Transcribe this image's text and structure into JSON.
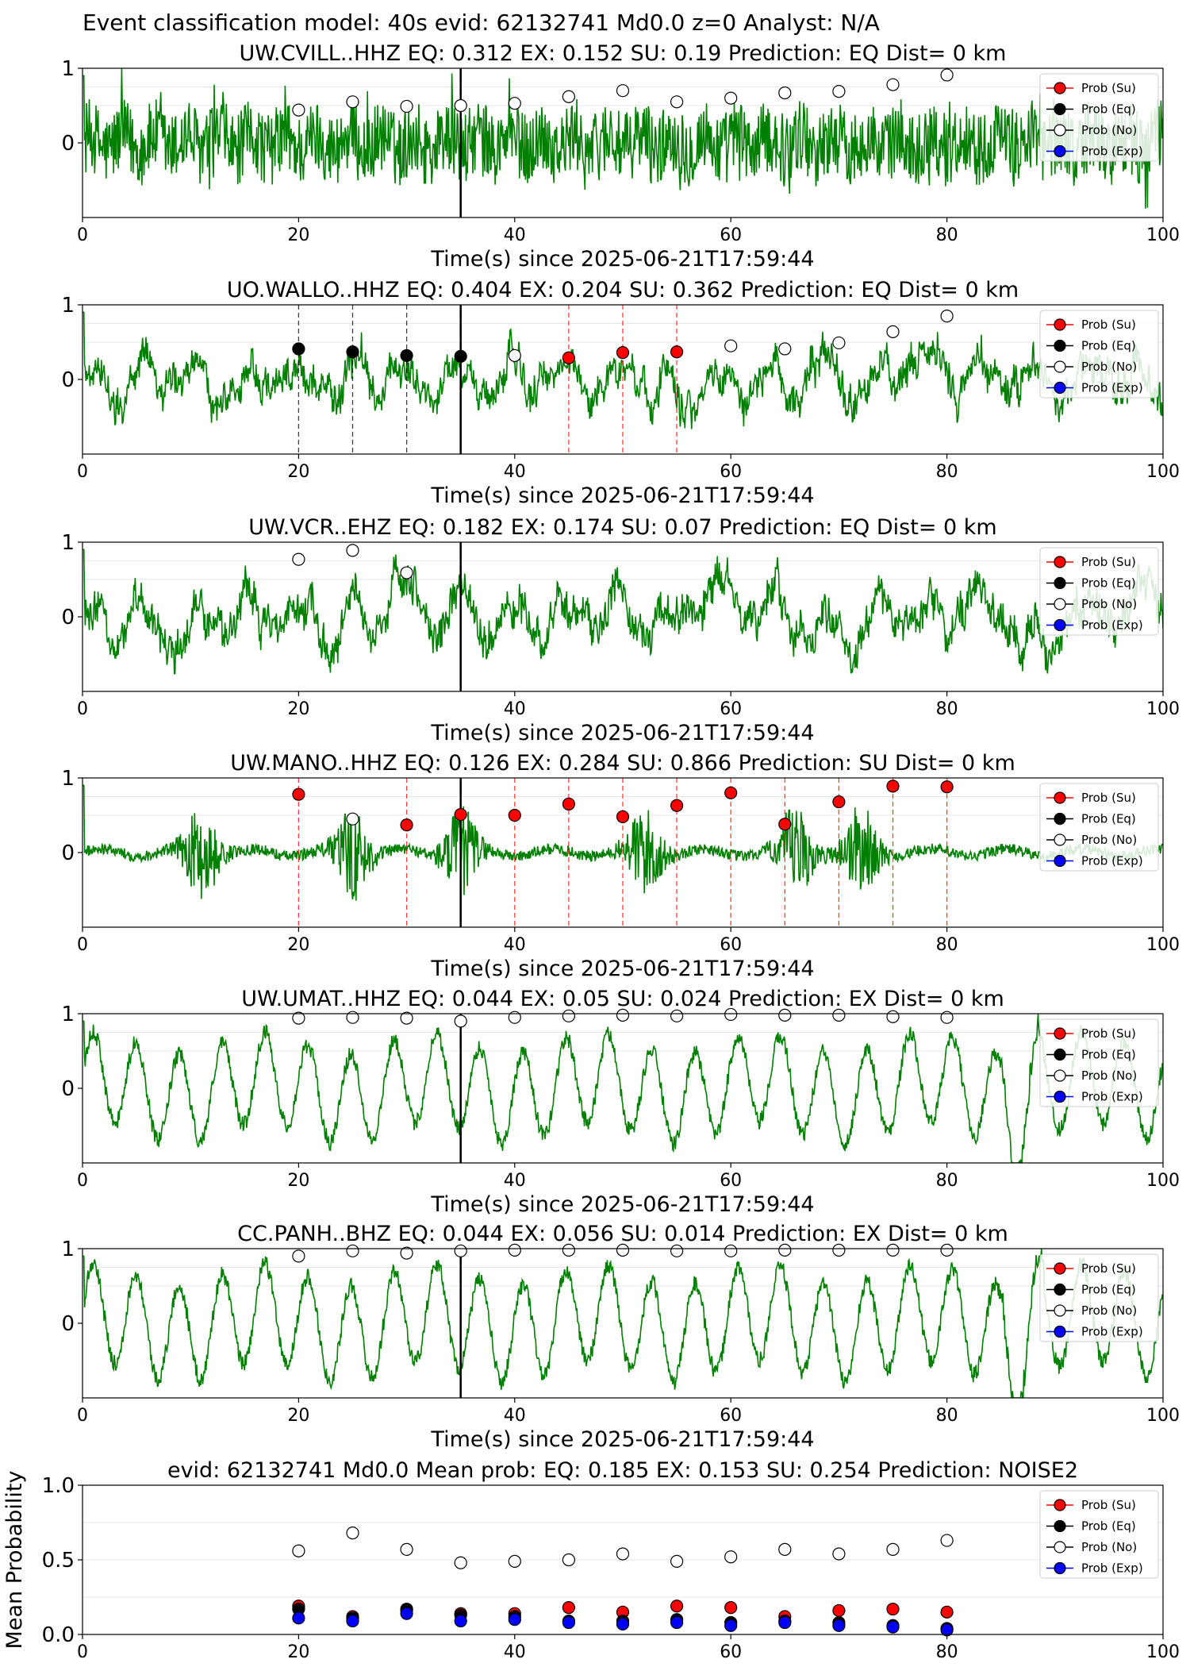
{
  "suptitle": "Event classification model: 40s evid: 62132741 Md0.0 z=0 Analyst: N/A",
  "legend": [
    {
      "label": "Prob (Su)",
      "color": "#ff0000",
      "filled": true
    },
    {
      "label": "Prob (Eq)",
      "color": "#000000",
      "filled": true
    },
    {
      "label": "Prob (No)",
      "color": "#ffffff",
      "filled": false
    },
    {
      "label": "Prob (Exp)",
      "color": "#0000ff",
      "filled": true
    }
  ],
  "colors": {
    "waveform": "#008000",
    "su": "#ff0000",
    "eq": "#000000",
    "no": "#ffffff",
    "exp": "#0000ff",
    "pick_line": "#000000"
  },
  "chart_data": [
    {
      "type": "line",
      "title": "UW.CVILL..HHZ   EQ: 0.312  EX: 0.152  SU: 0.19   Prediction: EQ    Dist= 0 km",
      "xlabel": "Time(s) since 2025-06-21T17:59:44",
      "xlim": [
        0,
        100
      ],
      "ylim": [
        -1,
        1
      ],
      "xticks": [
        "0",
        "20",
        "40",
        "60",
        "80",
        "100"
      ],
      "yticks": [
        "0",
        "1"
      ],
      "pick_time": 35,
      "waveform": {
        "style": "noisy",
        "amplitude": 0.55
      },
      "windows_x": [
        20,
        25,
        30,
        35,
        40,
        45,
        50,
        55,
        60,
        65,
        70,
        75,
        80
      ],
      "series": [
        {
          "name": "Prob (No)",
          "values": [
            0.44,
            0.55,
            0.49,
            0.5,
            0.53,
            0.62,
            0.7,
            0.55,
            0.6,
            0.67,
            0.69,
            0.78,
            0.91
          ]
        }
      ],
      "vlines": []
    },
    {
      "type": "line",
      "title": "UO.WALLO..HHZ   EQ: 0.404  EX: 0.204  SU: 0.362   Prediction: EQ    Dist= 0 km",
      "xlabel": "Time(s) since 2025-06-21T17:59:44",
      "xlim": [
        0,
        100
      ],
      "ylim": [
        -1,
        1
      ],
      "xticks": [
        "0",
        "20",
        "40",
        "60",
        "80",
        "100"
      ],
      "yticks": [
        "0",
        "1"
      ],
      "pick_time": 35,
      "waveform": {
        "style": "wander",
        "amplitude": 0.45
      },
      "windows_x": [
        20,
        25,
        30,
        35,
        40,
        45,
        50,
        55,
        60,
        65,
        70,
        75,
        80
      ],
      "series": [
        {
          "name": "Prob (Eq)",
          "x": [
            20,
            25,
            30,
            35
          ],
          "values": [
            0.41,
            0.37,
            0.32,
            0.31
          ]
        },
        {
          "name": "Prob (No)",
          "x": [
            40,
            60,
            65,
            70,
            75,
            80
          ],
          "values": [
            0.32,
            0.45,
            0.41,
            0.49,
            0.64,
            0.85
          ]
        },
        {
          "name": "Prob (Su)",
          "x": [
            45,
            50,
            55
          ],
          "values": [
            0.29,
            0.36,
            0.37
          ]
        }
      ],
      "vlines": [
        {
          "x": 20,
          "color": "#000000"
        },
        {
          "x": 25,
          "color": "#000000"
        },
        {
          "x": 30,
          "color": "#000000"
        },
        {
          "x": 45,
          "color": "#ff0000"
        },
        {
          "x": 50,
          "color": "#ff0000"
        },
        {
          "x": 55,
          "color": "#ff0000"
        }
      ]
    },
    {
      "type": "line",
      "title": "UW.VCR..EHZ   EQ: 0.182  EX: 0.174  SU: 0.07   Prediction: EQ    Dist= 0 km",
      "xlabel": "Time(s) since 2025-06-21T17:59:44",
      "xlim": [
        0,
        100
      ],
      "ylim": [
        -1,
        1
      ],
      "xticks": [
        "0",
        "20",
        "40",
        "60",
        "80",
        "100"
      ],
      "yticks": [
        "0",
        "1"
      ],
      "pick_time": 35,
      "waveform": {
        "style": "wander",
        "amplitude": 0.5
      },
      "windows_x": [
        20,
        25,
        30
      ],
      "series": [
        {
          "name": "Prob (No)",
          "x": [
            20,
            25,
            30
          ],
          "values": [
            0.77,
            0.89,
            0.59
          ]
        }
      ],
      "vlines": []
    },
    {
      "type": "line",
      "title": "UW.MANO..HHZ   EQ: 0.126  EX: 0.284  SU: 0.866   Prediction: SU    Dist= 0 km",
      "xlabel": "Time(s) since 2025-06-21T17:59:44",
      "xlim": [
        0,
        100
      ],
      "ylim": [
        -1,
        1
      ],
      "xticks": [
        "0",
        "20",
        "40",
        "60",
        "80",
        "100"
      ],
      "yticks": [
        "0",
        "1"
      ],
      "pick_time": 35,
      "waveform": {
        "style": "bursts",
        "amplitude": 0.3
      },
      "windows_x": [
        20,
        25,
        30,
        35,
        40,
        45,
        50,
        55,
        60,
        65,
        70,
        75,
        80
      ],
      "series": [
        {
          "name": "Prob (Su)",
          "x": [
            20,
            30,
            35,
            40,
            45,
            50,
            55,
            60,
            65,
            70,
            75,
            80
          ],
          "values": [
            0.78,
            0.37,
            0.51,
            0.5,
            0.65,
            0.48,
            0.63,
            0.8,
            0.38,
            0.68,
            0.89,
            0.88
          ]
        },
        {
          "name": "Prob (No)",
          "x": [
            25
          ],
          "values": [
            0.45
          ]
        }
      ],
      "vlines": [
        {
          "x": 20,
          "color": "#ff0000"
        },
        {
          "x": 30,
          "color": "#ff0000"
        },
        {
          "x": 40,
          "color": "#ff0000"
        },
        {
          "x": 45,
          "color": "#ff0000"
        },
        {
          "x": 50,
          "color": "#ff0000"
        },
        {
          "x": 55,
          "color": "#ff0000"
        },
        {
          "x": 60,
          "color": "#ff0000"
        },
        {
          "x": 65,
          "color": "#ff0000"
        },
        {
          "x": 70,
          "color": "#ff0000"
        },
        {
          "x": 75,
          "color": "#ff0000"
        },
        {
          "x": 80,
          "color": "#ff0000"
        }
      ]
    },
    {
      "type": "line",
      "title": "UW.UMAT..HHZ   EQ: 0.044  EX: 0.05  SU: 0.024   Prediction: EX    Dist= 0 km",
      "xlabel": "Time(s) since 2025-06-21T17:59:44",
      "xlim": [
        0,
        100
      ],
      "ylim": [
        -1,
        1
      ],
      "xticks": [
        "0",
        "20",
        "40",
        "60",
        "80",
        "100"
      ],
      "yticks": [
        "0",
        "1"
      ],
      "pick_time": 35,
      "waveform": {
        "style": "oscillation",
        "amplitude": 0.6
      },
      "windows_x": [
        20,
        25,
        30,
        35,
        40,
        45,
        50,
        55,
        60,
        65,
        70,
        75,
        80
      ],
      "series": [
        {
          "name": "Prob (No)",
          "values": [
            0.94,
            0.95,
            0.94,
            0.9,
            0.95,
            0.97,
            0.98,
            0.97,
            0.99,
            0.98,
            0.98,
            0.96,
            0.95
          ]
        }
      ],
      "vlines": []
    },
    {
      "type": "line",
      "title": "CC.PANH..BHZ   EQ: 0.044  EX: 0.056  SU: 0.014   Prediction: EX    Dist= 0 km",
      "xlabel": "Time(s) since 2025-06-21T17:59:44",
      "xlim": [
        0,
        100
      ],
      "ylim": [
        -1,
        1
      ],
      "xticks": [
        "0",
        "20",
        "40",
        "60",
        "80",
        "100"
      ],
      "yticks": [
        "0",
        "1"
      ],
      "pick_time": 35,
      "waveform": {
        "style": "oscillation",
        "amplitude": 0.65
      },
      "windows_x": [
        20,
        25,
        30,
        35,
        40,
        45,
        50,
        55,
        60,
        65,
        70,
        75,
        80
      ],
      "series": [
        {
          "name": "Prob (No)",
          "values": [
            0.9,
            0.97,
            0.94,
            0.97,
            0.98,
            0.98,
            0.98,
            0.97,
            0.97,
            0.98,
            0.98,
            0.98,
            0.98
          ]
        }
      ],
      "vlines": []
    },
    {
      "type": "scatter",
      "title": "evid: 62132741  Md0.0    Mean prob:    EQ: 0.185  EX: 0.153  SU: 0.254    Prediction: NOISE2",
      "xlabel": "",
      "ylabel": "Mean Probability",
      "xlim": [
        0,
        100
      ],
      "ylim": [
        0,
        1
      ],
      "xticks": [
        "0",
        "20",
        "40",
        "60",
        "80",
        "100"
      ],
      "yticks": [
        "0.0",
        "0.5",
        "1.0"
      ],
      "x": [
        20,
        25,
        30,
        35,
        40,
        45,
        50,
        55,
        60,
        65,
        70,
        75,
        80
      ],
      "series": [
        {
          "name": "Prob (No)",
          "values": [
            0.56,
            0.68,
            0.57,
            0.48,
            0.49,
            0.5,
            0.54,
            0.49,
            0.52,
            0.57,
            0.54,
            0.57,
            0.63
          ]
        },
        {
          "name": "Prob (Su)",
          "values": [
            0.19,
            0.12,
            0.16,
            0.14,
            0.14,
            0.18,
            0.15,
            0.19,
            0.18,
            0.12,
            0.16,
            0.17,
            0.15
          ]
        },
        {
          "name": "Prob (Eq)",
          "values": [
            0.17,
            0.11,
            0.17,
            0.13,
            0.12,
            0.09,
            0.09,
            0.1,
            0.08,
            0.09,
            0.08,
            0.06,
            0.04
          ]
        },
        {
          "name": "Prob (Exp)",
          "values": [
            0.11,
            0.09,
            0.14,
            0.09,
            0.1,
            0.08,
            0.07,
            0.08,
            0.06,
            0.08,
            0.06,
            0.05,
            0.03
          ]
        }
      ]
    }
  ]
}
